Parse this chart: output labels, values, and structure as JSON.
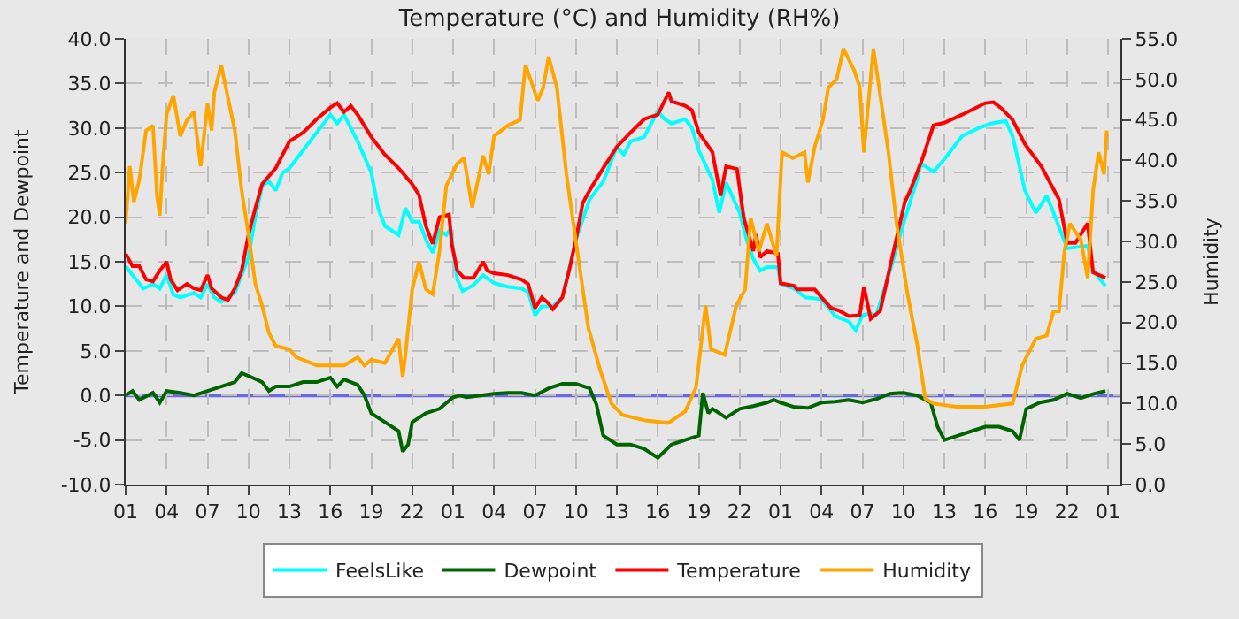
{
  "chart_data": {
    "type": "line",
    "title": "Temperature (°C) and Humidity (RH%)",
    "ylabel": "Temperature and Dewpoint",
    "y2label": "Humidity",
    "xlim": [
      "--01-01T01:00",
      "--01-04T01:54"
    ],
    "xticks": [
      {
        "value": "--01-01T01:00",
        "label": "01"
      },
      {
        "value": "--01-01T04:00",
        "label": "04"
      },
      {
        "value": "--01-01T07:00",
        "label": "07"
      },
      {
        "value": "--01-01T10:00",
        "label": "10"
      },
      {
        "value": "--01-01T13:00",
        "label": "13"
      },
      {
        "value": "--01-01T16:00",
        "label": "16"
      },
      {
        "value": "--01-01T19:00",
        "label": "19"
      },
      {
        "value": "--01-01T22:00",
        "label": "22"
      },
      {
        "value": "--01-02T01:00",
        "label": "01"
      },
      {
        "value": "--01-02T04:00",
        "label": "04"
      },
      {
        "value": "--01-02T07:00",
        "label": "07"
      },
      {
        "value": "--01-02T10:00",
        "label": "10"
      },
      {
        "value": "--01-02T13:00",
        "label": "13"
      },
      {
        "value": "--01-02T16:00",
        "label": "16"
      },
      {
        "value": "--01-02T19:00",
        "label": "19"
      },
      {
        "value": "--01-02T22:00",
        "label": "22"
      },
      {
        "value": "--01-03T01:00",
        "label": "01"
      },
      {
        "value": "--01-03T04:00",
        "label": "04"
      },
      {
        "value": "--01-03T07:00",
        "label": "07"
      },
      {
        "value": "--01-03T10:00",
        "label": "10"
      },
      {
        "value": "--01-03T13:00",
        "label": "13"
      },
      {
        "value": "--01-03T16:00",
        "label": "16"
      },
      {
        "value": "--01-03T19:00",
        "label": "19"
      },
      {
        "value": "--01-03T22:00",
        "label": "22"
      },
      {
        "value": "--01-04T01:00",
        "label": "01"
      }
    ],
    "ylim": [
      -10,
      40
    ],
    "yticks": [
      {
        "value": -10,
        "label": "-10.0"
      },
      {
        "value": -5,
        "label": "-5.0"
      },
      {
        "value": 0,
        "label": "0.0"
      },
      {
        "value": 5,
        "label": "5.0"
      },
      {
        "value": 10,
        "label": "10.0"
      },
      {
        "value": 15,
        "label": "15.0"
      },
      {
        "value": 20,
        "label": "20.0"
      },
      {
        "value": 25,
        "label": "25.0"
      },
      {
        "value": 30,
        "label": "30.0"
      },
      {
        "value": 35,
        "label": "35.0"
      },
      {
        "value": 40,
        "label": "40.0"
      }
    ],
    "y2lim": [
      0,
      55
    ],
    "y2ticks": [
      {
        "value": 0,
        "label": "0.0"
      },
      {
        "value": 5,
        "label": "5.0"
      },
      {
        "value": 10,
        "label": "10.0"
      },
      {
        "value": 15,
        "label": "15.0"
      },
      {
        "value": 20,
        "label": "20.0"
      },
      {
        "value": 25,
        "label": "25.0"
      },
      {
        "value": 30,
        "label": "30.0"
      },
      {
        "value": 35,
        "label": "35.0"
      },
      {
        "value": 40,
        "label": "40.0"
      },
      {
        "value": 45,
        "label": "45.0"
      },
      {
        "value": 50,
        "label": "50.0"
      },
      {
        "value": 55,
        "label": "55.0"
      }
    ],
    "grid": true,
    "legend": "bottom",
    "marker": "none",
    "line_style": "solid",
    "ref_lines": [
      {
        "axis": "y",
        "value": 0,
        "color": "#6a6ae0"
      }
    ],
    "series": [
      {
        "name": "FeelsLike",
        "color": "#00ffff",
        "x": [
          "--01-01T01:00",
          "--01-01T01:30",
          "--01-01T02:18",
          "--01-01T03:00",
          "--01-01T03:30",
          "--01-01T04:00",
          "--01-01T04:30",
          "--01-01T05:00",
          "--01-01T06:00",
          "--01-01T06:30",
          "--01-01T07:00",
          "--01-01T07:30",
          "--01-01T08:00",
          "--01-01T09:00",
          "--01-01T10:00",
          "--01-01T10:30",
          "--01-01T11:00",
          "--01-01T11:30",
          "--01-01T12:00",
          "--01-01T12:30",
          "--01-01T13:00",
          "--01-01T14:00",
          "--01-01T15:00",
          "--01-01T16:00",
          "--01-01T16:30",
          "--01-01T17:00",
          "--01-01T18:00",
          "--01-01T19:00",
          "--01-01T19:30",
          "--01-01T20:00",
          "--01-01T21:00",
          "--01-01T21:30",
          "--01-01T22:00",
          "--01-01T22:30",
          "--01-01T23:00",
          "--01-01T23:30",
          "--01-02T00:00",
          "--01-02T00:30",
          "--01-02T00:48",
          "--01-02T01:18",
          "--01-02T01:42",
          "--01-02T02:30",
          "--01-02T03:12",
          "--01-02T04:00",
          "--01-02T05:00",
          "--01-02T06:00",
          "--01-02T06:30",
          "--01-02T07:00",
          "--01-02T07:30",
          "--01-02T08:18",
          "--01-02T09:00",
          "--01-02T10:00",
          "--01-02T11:00",
          "--01-02T12:00",
          "--01-02T13:00",
          "--01-02T13:30",
          "--01-02T14:00",
          "--01-02T15:00",
          "--01-02T16:00",
          "--01-02T16:30",
          "--01-02T17:00",
          "--01-02T18:00",
          "--01-02T18:30",
          "--01-02T19:00",
          "--01-02T20:00",
          "--01-02T20:30",
          "--01-02T21:00",
          "--01-02T22:00",
          "--01-02T22:30",
          "--01-02T23:00",
          "--01-02T23:30",
          "--01-03T00:00",
          "--01-03T00:48",
          "--01-03T01:00",
          "--01-03T02:00",
          "--01-03T02:48",
          "--01-03T04:00",
          "--01-03T05:00",
          "--01-03T06:00",
          "--01-03T06:30",
          "--01-03T07:00",
          "--01-03T07:30",
          "--01-03T08:00",
          "--01-03T09:06",
          "--01-03T10:00",
          "--01-03T11:00",
          "--01-03T11:18",
          "--01-03T12:12",
          "--01-03T13:00",
          "--01-03T14:18",
          "--01-03T15:30",
          "--01-03T16:24",
          "--01-03T17:30",
          "--01-03T18:00",
          "--01-03T18:54",
          "--01-03T19:42",
          "--01-03T20:30",
          "--01-03T21:00",
          "--01-03T22:00",
          "--01-03T23:30",
          "--01-03T23:54",
          "--01-04T00:48"
        ],
        "values": [
          14.5,
          13.5,
          12,
          12.5,
          12,
          13.5,
          11.3,
          11,
          11.5,
          11,
          12.5,
          11,
          10.5,
          11.5,
          15.5,
          20,
          23.5,
          24,
          23,
          25,
          25.5,
          27.5,
          29.5,
          31.5,
          30.5,
          31.5,
          28.5,
          25,
          21,
          19,
          18,
          21,
          19.5,
          19.5,
          17.5,
          16,
          18.5,
          18,
          18.7,
          13,
          11.7,
          12.4,
          13.5,
          12.6,
          12.2,
          12,
          11.6,
          9,
          10,
          10,
          11,
          17.5,
          22,
          24,
          27.9,
          27,
          28.5,
          29,
          31.9,
          31,
          30.5,
          31,
          30,
          27.5,
          24.2,
          20.5,
          23.9,
          20.5,
          17.5,
          15.3,
          14,
          14.4,
          14.4,
          12.5,
          12,
          11,
          10.8,
          8.9,
          8.3,
          7.3,
          9,
          9.2,
          9,
          14.4,
          19.3,
          24.2,
          26,
          25.1,
          26.5,
          29.1,
          30,
          30.5,
          30.8,
          29.1,
          23,
          20.5,
          22.4,
          20.5,
          16.5,
          16.8,
          14,
          12.3
        ]
      },
      {
        "name": "Dewpoint",
        "color": "#006400",
        "x": [
          "--01-01T01:00",
          "--01-01T01:30",
          "--01-01T02:00",
          "--01-01T03:00",
          "--01-01T03:30",
          "--01-01T04:00",
          "--01-01T05:00",
          "--01-01T06:00",
          "--01-01T07:00",
          "--01-01T08:00",
          "--01-01T09:00",
          "--01-01T09:30",
          "--01-01T10:00",
          "--01-01T11:00",
          "--01-01T11:30",
          "--01-01T12:00",
          "--01-01T13:00",
          "--01-01T14:00",
          "--01-01T15:00",
          "--01-01T16:00",
          "--01-01T16:30",
          "--01-01T17:00",
          "--01-01T18:00",
          "--01-01T18:30",
          "--01-01T19:00",
          "--01-01T20:00",
          "--01-01T21:00",
          "--01-01T21:18",
          "--01-01T21:42",
          "--01-01T22:00",
          "--01-01T23:00",
          "--01-02T00:00",
          "--01-02T01:00",
          "--01-02T01:30",
          "--01-02T02:00",
          "--01-02T03:00",
          "--01-02T04:00",
          "--01-02T05:00",
          "--01-02T06:00",
          "--01-02T07:00",
          "--01-02T08:00",
          "--01-02T09:00",
          "--01-02T10:00",
          "--01-02T11:00",
          "--01-02T11:30",
          "--01-02T12:00",
          "--01-02T13:00",
          "--01-02T14:00",
          "--01-02T15:00",
          "--01-02T16:00",
          "--01-02T17:00",
          "--01-02T18:00",
          "--01-02T19:00",
          "--01-02T19:18",
          "--01-02T19:42",
          "--01-02T20:00",
          "--01-02T21:00",
          "--01-02T22:00",
          "--01-02T23:00",
          "--01-03T00:00",
          "--01-03T00:30",
          "--01-03T01:00",
          "--01-03T02:00",
          "--01-03T03:00",
          "--01-03T04:00",
          "--01-03T05:00",
          "--01-03T06:00",
          "--01-03T07:00",
          "--01-03T08:00",
          "--01-03T09:00",
          "--01-03T10:00",
          "--01-03T11:00",
          "--01-03T12:00",
          "--01-03T12:30",
          "--01-03T13:00",
          "--01-03T14:00",
          "--01-03T15:00",
          "--01-03T16:00",
          "--01-03T17:00",
          "--01-03T18:00",
          "--01-03T18:30",
          "--01-03T19:00",
          "--01-03T20:00",
          "--01-03T21:00",
          "--01-03T22:00",
          "--01-03T23:00",
          "--01-04T00:00",
          "--01-04T00:48"
        ],
        "values": [
          0,
          0.5,
          -0.5,
          0.3,
          -0.8,
          0.5,
          0.3,
          0,
          0.5,
          1,
          1.5,
          2.5,
          2.2,
          1.5,
          0.5,
          1,
          1,
          1.5,
          1.5,
          2,
          1,
          1.8,
          1.2,
          0,
          -2,
          -3,
          -4,
          -6.3,
          -5.5,
          -3,
          -2,
          -1.5,
          -0.2,
          0,
          -0.2,
          0,
          0.2,
          0.3,
          0.3,
          0,
          0.8,
          1.3,
          1.3,
          0.8,
          -1,
          -4.5,
          -5.5,
          -5.5,
          -6,
          -7,
          -5.5,
          -5,
          -4.5,
          0.3,
          -2,
          -1.5,
          -2.5,
          -1.5,
          -1.2,
          -0.8,
          -0.5,
          -0.8,
          -1.3,
          -1.4,
          -0.8,
          -0.7,
          -0.5,
          -0.8,
          -0.4,
          0.2,
          0.3,
          0,
          -0.8,
          -3.5,
          -5,
          -4.5,
          -4,
          -3.5,
          -3.5,
          -4,
          -5,
          -1.5,
          -0.8,
          -0.5,
          0.2,
          -0.3,
          0.2,
          0.5
        ]
      },
      {
        "name": "Temperature",
        "color": "#ff0000",
        "x": [
          "--01-01T01:00",
          "--01-01T01:30",
          "--01-01T02:00",
          "--01-01T02:30",
          "--01-01T03:00",
          "--01-01T03:30",
          "--01-01T04:00",
          "--01-01T04:18",
          "--01-01T04:48",
          "--01-01T05:30",
          "--01-01T06:00",
          "--01-01T06:30",
          "--01-01T07:00",
          "--01-01T07:18",
          "--01-01T08:00",
          "--01-01T08:30",
          "--01-01T09:00",
          "--01-01T09:30",
          "--01-01T10:00",
          "--01-01T10:30",
          "--01-01T11:00",
          "--01-01T12:00",
          "--01-01T13:00",
          "--01-01T14:00",
          "--01-01T15:00",
          "--01-01T16:00",
          "--01-01T16:30",
          "--01-01T17:00",
          "--01-01T17:30",
          "--01-01T18:00",
          "--01-01T19:00",
          "--01-01T20:00",
          "--01-01T21:00",
          "--01-01T22:00",
          "--01-01T22:30",
          "--01-01T23:00",
          "--01-01T23:30",
          "--01-02T00:00",
          "--01-02T00:42",
          "--01-02T00:54",
          "--01-02T01:18",
          "--01-02T01:48",
          "--01-02T02:30",
          "--01-02T03:12",
          "--01-02T03:30",
          "--01-02T04:00",
          "--01-02T05:00",
          "--01-02T06:00",
          "--01-02T06:30",
          "--01-02T07:00",
          "--01-02T07:30",
          "--01-02T08:00",
          "--01-02T08:18",
          "--01-02T09:00",
          "--01-02T09:30",
          "--01-02T10:00",
          "--01-02T10:30",
          "--01-02T11:00",
          "--01-02T12:00",
          "--01-02T13:00",
          "--01-02T14:00",
          "--01-02T15:00",
          "--01-02T16:00",
          "--01-02T16:48",
          "--01-02T17:00",
          "--01-02T18:00",
          "--01-02T18:30",
          "--01-02T19:00",
          "--01-02T20:00",
          "--01-02T20:36",
          "--01-02T21:00",
          "--01-02T21:48",
          "--01-02T22:18",
          "--01-02T23:00",
          "--01-02T23:12",
          "--01-02T23:30",
          "--01-03T00:00",
          "--01-03T00:48",
          "--01-03T01:00",
          "--01-03T02:00",
          "--01-03T02:12",
          "--01-03T03:30",
          "--01-03T04:00",
          "--01-03T04:42",
          "--01-03T05:18",
          "--01-03T06:00",
          "--01-03T06:48",
          "--01-03T07:06",
          "--01-03T07:36",
          "--01-03T08:18",
          "--01-03T09:06",
          "--01-03T10:06",
          "--01-03T10:30",
          "--01-03T11:24",
          "--01-03T12:12",
          "--01-03T13:00",
          "--01-03T14:18",
          "--01-03T16:00",
          "--01-03T16:36",
          "--01-03T17:12",
          "--01-03T18:00",
          "--01-03T18:54",
          "--01-03T20:06",
          "--01-03T21:24",
          "--01-03T22:00",
          "--01-03T22:36",
          "--01-03T23:30",
          "--01-03T23:54",
          "--01-04T00:48"
        ],
        "values": [
          15.9,
          14.5,
          14.5,
          13,
          12.8,
          14,
          15,
          13,
          11.8,
          12.5,
          12,
          11.8,
          13.5,
          12,
          11,
          10.7,
          12,
          14,
          18,
          21,
          23.7,
          25.5,
          28.5,
          29.5,
          31,
          32.3,
          32.8,
          31.8,
          32.5,
          31.5,
          29,
          27,
          25.5,
          23.7,
          22.5,
          19,
          17,
          20,
          20.3,
          17,
          14,
          13.2,
          13.2,
          15,
          14,
          13.7,
          13.5,
          13,
          12.5,
          9.8,
          11,
          10.3,
          9.7,
          11,
          14,
          17.5,
          21.6,
          23,
          25.5,
          27.9,
          29.5,
          31,
          31.5,
          34,
          33,
          32.5,
          32,
          29.5,
          27.3,
          22.4,
          25.7,
          25.4,
          19.9,
          16.2,
          18.1,
          15.5,
          16.2,
          15.9,
          12.6,
          12.3,
          11.9,
          11.9,
          11,
          9.8,
          9.5,
          8.9,
          9,
          12.2,
          8.6,
          9.5,
          15,
          21.7,
          23,
          26.6,
          30.3,
          30.6,
          31.5,
          32.8,
          32.9,
          32.2,
          30.9,
          28.2,
          25.7,
          22,
          17.1,
          17.1,
          19.3,
          13.8,
          13.2
        ]
      },
      {
        "name": "Humidity",
        "color": "#ffa500",
        "axis": "y2",
        "x": [
          "--01-01T01:00",
          "--01-01T01:18",
          "--01-01T01:36",
          "--01-01T02:00",
          "--01-01T02:30",
          "--01-01T03:00",
          "--01-01T03:18",
          "--01-01T03:30",
          "--01-01T03:42",
          "--01-01T04:00",
          "--01-01T04:30",
          "--01-01T05:00",
          "--01-01T05:30",
          "--01-01T06:00",
          "--01-01T06:30",
          "--01-01T07:00",
          "--01-01T07:18",
          "--01-01T07:30",
          "--01-01T08:00",
          "--01-01T08:30",
          "--01-01T09:00",
          "--01-01T09:30",
          "--01-01T10:00",
          "--01-01T10:30",
          "--01-01T11:00",
          "--01-01T11:30",
          "--01-01T12:00",
          "--01-01T13:00",
          "--01-01T13:30",
          "--01-01T14:00",
          "--01-01T15:00",
          "--01-01T16:00",
          "--01-01T17:00",
          "--01-01T18:00",
          "--01-01T18:30",
          "--01-01T19:00",
          "--01-01T20:00",
          "--01-01T21:00",
          "--01-01T21:18",
          "--01-01T21:30",
          "--01-01T22:00",
          "--01-01T22:30",
          "--01-01T23:00",
          "--01-01T23:30",
          "--01-02T00:00",
          "--01-02T00:30",
          "--01-02T01:18",
          "--01-02T01:48",
          "--01-02T02:24",
          "--01-02T03:12",
          "--01-02T03:36",
          "--01-02T04:00",
          "--01-02T05:00",
          "--01-02T05:54",
          "--01-02T06:18",
          "--01-02T07:12",
          "--01-02T07:36",
          "--01-02T08:00",
          "--01-02T08:36",
          "--01-02T09:18",
          "--01-02T10:06",
          "--01-02T10:54",
          "--01-02T11:48",
          "--01-02T12:36",
          "--01-02T13:24",
          "--01-02T15:06",
          "--01-02T16:45",
          "--01-02T18:00",
          "--01-02T18:48",
          "--01-02T19:30",
          "--01-02T19:54",
          "--01-02T20:54",
          "--01-02T21:45",
          "--01-02T22:24",
          "--01-02T22:48",
          "--01-02T23:24",
          "--01-03T00:00",
          "--01-03T00:42",
          "--01-03T01:06",
          "--01-03T01:54",
          "--01-03T02:45",
          "--01-03T03:00",
          "--01-03T03:30",
          "--01-03T04:06",
          "--01-03T04:30",
          "--01-03T05:06",
          "--01-03T05:36",
          "--01-03T06:24",
          "--01-03T06:48",
          "--01-03T07:06",
          "--01-03T07:48",
          "--01-03T08:30",
          "--01-03T08:54",
          "--01-03T09:30",
          "--01-03T10:18",
          "--01-03T11:00",
          "--01-03T11:36",
          "--01-03T12:12",
          "--01-03T13:54",
          "--01-03T16:00",
          "--01-03T18:00",
          "--01-03T18:42",
          "--01-03T19:42",
          "--01-03T20:30",
          "--01-03T21:00",
          "--01-03T21:24",
          "--01-03T21:48",
          "--01-03T22:12",
          "--01-03T23:00",
          "--01-03T23:30",
          "--01-03T23:54",
          "--01-04T00:18",
          "--01-04T00:42",
          "--01-04T00:54"
        ],
        "values": [
          32.2,
          39.3,
          34.9,
          37.6,
          43.7,
          44.3,
          35.6,
          33.2,
          39,
          45.7,
          48,
          43,
          45,
          46,
          39.3,
          47,
          43.7,
          48.4,
          51.8,
          47.7,
          43.7,
          36.3,
          30.9,
          24.8,
          22.1,
          18.7,
          17.1,
          16.7,
          15.7,
          15.4,
          14.7,
          14.7,
          14.7,
          15.7,
          14.7,
          15.4,
          15,
          18,
          13.3,
          16,
          24.1,
          27.5,
          24.1,
          23.5,
          28.8,
          36.9,
          39.6,
          40.3,
          34.2,
          40.6,
          38.3,
          43,
          44.3,
          45,
          51.8,
          47.4,
          49,
          52.8,
          49,
          38.3,
          28.8,
          19.4,
          14,
          10,
          8.6,
          7.9,
          7.6,
          9,
          12,
          22.1,
          16.7,
          16,
          22.1,
          24.1,
          32.9,
          28.8,
          32.2,
          28.2,
          41,
          40.3,
          41,
          37.3,
          41.7,
          45,
          49,
          50,
          53.8,
          51.1,
          49,
          41,
          53.8,
          45.7,
          41,
          32.2,
          23.5,
          17.4,
          10.6,
          10,
          9.6,
          9.6,
          10,
          14.7,
          18,
          18.4,
          21.4,
          21.4,
          28.8,
          32.2,
          30.2,
          25.5,
          36.3,
          41,
          38.3,
          43.7
        ]
      }
    ]
  }
}
